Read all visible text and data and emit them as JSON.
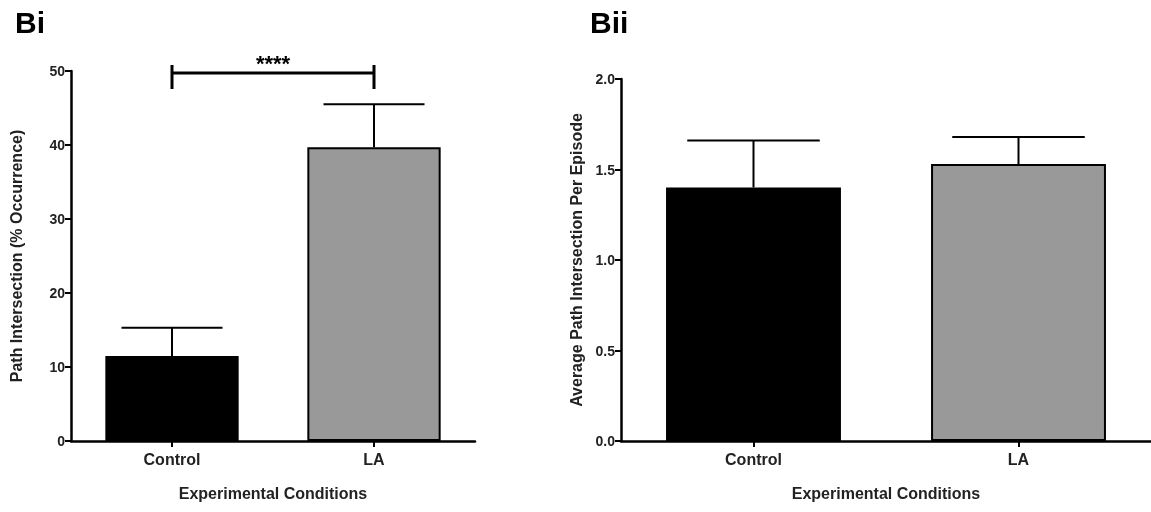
{
  "chart_data": [
    {
      "type": "bar",
      "title": "Bi",
      "xlabel": "Experimental Conditions",
      "ylabel": "Path Intersection (% Occurrence)",
      "categories": [
        "Control",
        "LA"
      ],
      "values": [
        11.5,
        39.7
      ],
      "colors": [
        "#000000",
        "#999999"
      ],
      "errors": [
        [
          11.5,
          15.3
        ],
        [
          39.7,
          45.5
        ]
      ],
      "ylim": [
        0,
        50
      ],
      "yticks": [
        0,
        10,
        20,
        30,
        40,
        50
      ],
      "grid": false,
      "annotations": [
        "****"
      ]
    },
    {
      "type": "bar",
      "title": "Bii",
      "xlabel": "Experimental Conditions",
      "ylabel": "Average Path Intersection Per Episode",
      "categories": [
        "Control",
        "LA"
      ],
      "values": [
        1.4,
        1.53
      ],
      "colors": [
        "#000000",
        "#999999"
      ],
      "errors": [
        [
          1.4,
          1.66
        ],
        [
          1.53,
          1.68
        ]
      ],
      "ylim": [
        0,
        2.0
      ],
      "yticks": [
        {
          "value": 0,
          "label": "0.0"
        },
        {
          "value": 0.5,
          "label": "0.5"
        },
        {
          "value": 1,
          "label": "1.0"
        },
        {
          "value": 1.5,
          "label": "1.5"
        },
        {
          "value": 2,
          "label": "2.0"
        }
      ],
      "grid": false
    }
  ]
}
